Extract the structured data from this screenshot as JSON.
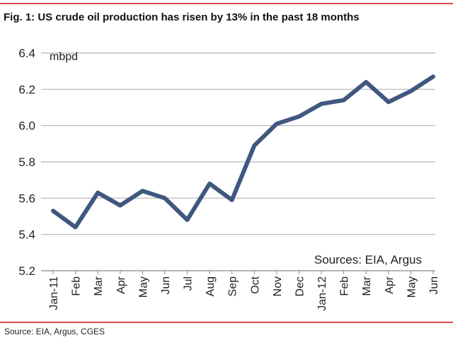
{
  "figure": {
    "title": "Fig. 1:  US crude oil production has risen by 13% in the past 18 months",
    "footer": "Source: EIA, Argus, CGES"
  },
  "colors": {
    "rule": "#d84a4a",
    "line": "#40577f",
    "grid": "#b5b5b5",
    "axis": "#888888"
  },
  "chart_data": {
    "type": "line",
    "title": "Fig. 1:  US crude oil production has risen by 13% in the past 18 months",
    "ylabel": "mbpd",
    "xlabel": "",
    "annotation": "Sources: EIA, Argus",
    "ylim": [
      5.2,
      6.4
    ],
    "yticks": [
      "5.2",
      "5.4",
      "5.6",
      "5.8",
      "6.0",
      "6.2",
      "6.4"
    ],
    "grid": true,
    "categories": [
      "Jan-11",
      "Feb",
      "Mar",
      "Apr",
      "May",
      "Jun",
      "Jul",
      "Aug",
      "Sep",
      "Oct",
      "Nov",
      "Dec",
      "Jan-12",
      "Feb",
      "Mar",
      "Apr",
      "May",
      "Jun"
    ],
    "series": [
      {
        "name": "US crude oil production",
        "values": [
          5.53,
          5.44,
          5.63,
          5.56,
          5.64,
          5.6,
          5.48,
          5.68,
          5.59,
          5.89,
          6.01,
          6.05,
          6.12,
          6.14,
          6.24,
          6.13,
          6.19,
          6.27
        ]
      }
    ]
  }
}
